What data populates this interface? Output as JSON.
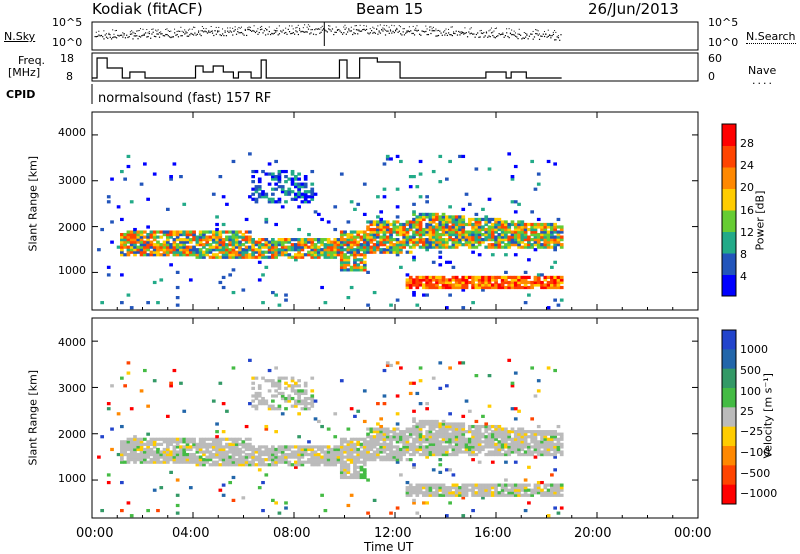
{
  "header": {
    "station": "Kodiak (fitACF)",
    "beam": "Beam 15",
    "date": "26/Jun/2013"
  },
  "panels": {
    "nsky_label": "N.Sky",
    "nsearch_label": "N.Search",
    "freq_label_1": "Freq.",
    "freq_label_2": "[MHz]",
    "nave_label": "Nave",
    "cpid_label": "CPID",
    "cpid_text": "normalsound (fast) 157 RF",
    "nsky_ticks": [
      "10^5",
      "10^0"
    ],
    "nsearch_ticks": [
      "10^5",
      "10^0"
    ],
    "freq_ticks": [
      "18",
      "8"
    ],
    "nave_ticks": [
      "60",
      "0"
    ]
  },
  "colors": {
    "power": [
      "#0000ff",
      "#2255bb",
      "#22aa88",
      "#66cc33",
      "#ffcc00",
      "#ff8800",
      "#ff4400",
      "#ff0000"
    ],
    "velocity": [
      "#2244cc",
      "#2266aa",
      "#339966",
      "#44bb44",
      "#bbbbbb",
      "#ffcc00",
      "#ff8800",
      "#ff4400",
      "#ff0000"
    ]
  },
  "chart_data": [
    {
      "type": "heatmap",
      "title": "Power",
      "xlabel": "Time UT",
      "ylabel": "Slant Range [km]",
      "xticks": [
        "00:00",
        "04:00",
        "08:00",
        "12:00",
        "16:00",
        "20:00",
        "00:00"
      ],
      "x_range_hours": [
        0,
        24
      ],
      "yticks": [
        1000,
        2000,
        3000,
        4000
      ],
      "ylim": [
        180,
        4500
      ],
      "colorbar_label": "Power [dB]",
      "colorbar_ticks": [
        "4",
        "8",
        "12",
        "16",
        "20",
        "24",
        "28"
      ],
      "data_end_hour": 18.6
    },
    {
      "type": "heatmap",
      "title": "Velocity",
      "xlabel": "Time UT",
      "ylabel": "Slant Range [km]",
      "xticks": [
        "00:00",
        "04:00",
        "08:00",
        "12:00",
        "16:00",
        "20:00",
        "00:00"
      ],
      "x_range_hours": [
        0,
        24
      ],
      "yticks": [
        1000,
        2000,
        3000,
        4000
      ],
      "ylim": [
        180,
        4500
      ],
      "colorbar_label": "Velocity [m s⁻¹]",
      "colorbar_ticks": [
        "1000",
        "500",
        "100",
        "25",
        "−25",
        "−100",
        "−500",
        "−1000"
      ],
      "data_end_hour": 18.6
    }
  ]
}
